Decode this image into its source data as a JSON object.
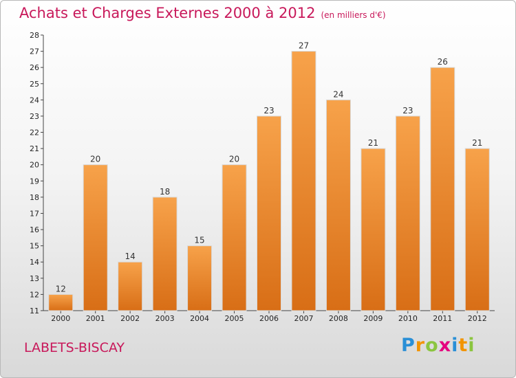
{
  "chart_data": {
    "type": "bar",
    "title": "Achats et Charges Externes 2000 à 2012",
    "subtitle": "(en milliers d'€)",
    "categories": [
      "2000",
      "2001",
      "2002",
      "2003",
      "2004",
      "2005",
      "2006",
      "2007",
      "2008",
      "2009",
      "2010",
      "2011",
      "2012"
    ],
    "values": [
      12,
      20,
      14,
      18,
      15,
      20,
      23,
      27,
      24,
      21,
      23,
      26,
      21
    ],
    "ylim": [
      11,
      28
    ],
    "yticks": [
      "11",
      "12",
      "13",
      "14",
      "15",
      "16",
      "17",
      "18",
      "19",
      "20",
      "21",
      "22",
      "23",
      "24",
      "25",
      "26",
      "27",
      "28"
    ],
    "xlabel": "",
    "ylabel": "",
    "grid": false,
    "bar_color": "#f08a2c",
    "title_color": "#c8185a"
  },
  "footer": {
    "place": "LABETS-BISCAY",
    "logo_letters": [
      "P",
      "r",
      "o",
      "x",
      "i",
      "t",
      "i"
    ],
    "logo_colors": [
      "#2a8fd6",
      "#f29400",
      "#8bc53f",
      "#e5007e",
      "#2a8fd6",
      "#f29400",
      "#8bc53f"
    ]
  }
}
